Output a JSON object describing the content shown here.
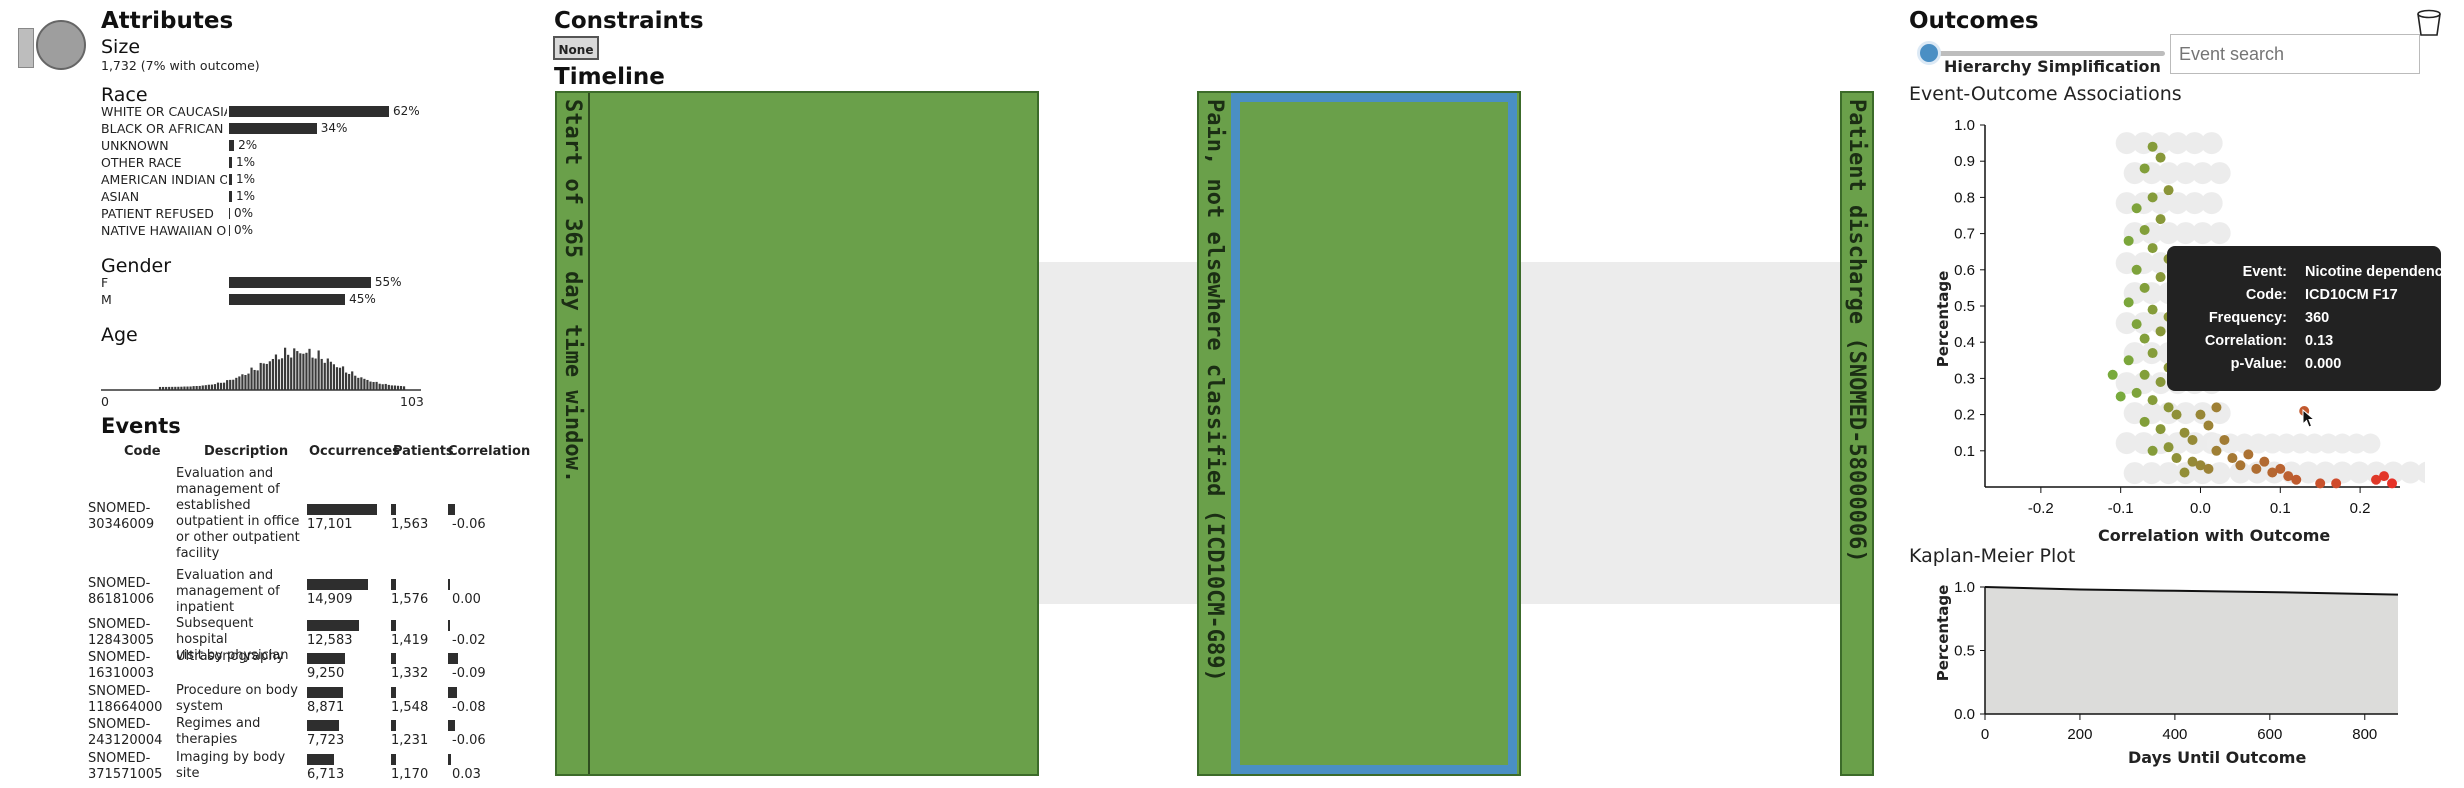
{
  "attributes": {
    "title": "Attributes",
    "size_label": "Size",
    "size_value": "1,732 (7% with outcome)",
    "race_label": "Race",
    "race": [
      {
        "label": "WHITE OR CAUCASIA",
        "pct": "62%",
        "value": 62
      },
      {
        "label": "BLACK OR AFRICAN A",
        "pct": "34%",
        "value": 34
      },
      {
        "label": "UNKNOWN",
        "pct": "2%",
        "value": 2
      },
      {
        "label": "OTHER RACE",
        "pct": "1%",
        "value": 1
      },
      {
        "label": "AMERICAN INDIAN OI",
        "pct": "1%",
        "value": 1
      },
      {
        "label": "ASIAN",
        "pct": "1%",
        "value": 1
      },
      {
        "label": "PATIENT REFUSED",
        "pct": "0%",
        "value": 0
      },
      {
        "label": "NATIVE HAWAIIAN OI",
        "pct": "0%",
        "value": 0
      }
    ],
    "gender_label": "Gender",
    "gender": [
      {
        "label": "F",
        "pct": "55%",
        "value": 55
      },
      {
        "label": "M",
        "pct": "45%",
        "value": 45
      }
    ],
    "age_label": "Age",
    "age_min": "0",
    "age_max": "103"
  },
  "events": {
    "title": "Events",
    "headers": {
      "code": "Code",
      "description": "Description",
      "occurrences": "Occurrences",
      "patients": "Patients",
      "correlation": "Correlation"
    },
    "rows": [
      {
        "code": "SNOMED-30346009",
        "code_lines": [
          "SNOMED-",
          "30346009"
        ],
        "description_lines": [
          "Evaluation and",
          "management of",
          "established",
          "outpatient in office",
          "or other outpatient",
          "facility"
        ],
        "occurrences": "17,101",
        "occ_value": 17101,
        "patients": "1,563",
        "correlation": "-0.06",
        "corr_value": -0.06
      },
      {
        "code": "SNOMED-86181006",
        "code_lines": [
          "SNOMED-",
          "86181006"
        ],
        "description_lines": [
          "Evaluation and",
          "management of",
          "inpatient"
        ],
        "occurrences": "14,909",
        "occ_value": 14909,
        "patients": "1,576",
        "correlation": "0.00",
        "corr_value": 0.0
      },
      {
        "code": "SNOMED-12843005",
        "code_lines": [
          "SNOMED-",
          "12843005"
        ],
        "description_lines": [
          "Subsequent hospital",
          "visit by physician"
        ],
        "occurrences": "12,583",
        "occ_value": 12583,
        "patients": "1,419",
        "correlation": "-0.02",
        "corr_value": -0.02
      },
      {
        "code": "SNOMED-16310003",
        "code_lines": [
          "SNOMED-",
          "16310003"
        ],
        "description_lines": [
          "Ultrasonography"
        ],
        "occurrences": "9,250",
        "occ_value": 9250,
        "patients": "1,332",
        "correlation": "-0.09",
        "corr_value": -0.09
      },
      {
        "code": "SNOMED-118664000",
        "code_lines": [
          "SNOMED-",
          "118664000"
        ],
        "description_lines": [
          "Procedure on body",
          "system"
        ],
        "occurrences": "8,871",
        "occ_value": 8871,
        "patients": "1,548",
        "correlation": "-0.08",
        "corr_value": -0.08
      },
      {
        "code": "SNOMED-243120004",
        "code_lines": [
          "SNOMED-",
          "243120004"
        ],
        "description_lines": [
          "Regimes and",
          "therapies"
        ],
        "occurrences": "7,723",
        "occ_value": 7723,
        "patients": "1,231",
        "correlation": "-0.06",
        "corr_value": -0.06
      },
      {
        "code": "SNOMED-371571005",
        "code_lines": [
          "SNOMED-",
          "371571005"
        ],
        "description_lines": [
          "Imaging by body site"
        ],
        "occurrences": "6,713",
        "occ_value": 6713,
        "patients": "1,170",
        "correlation": "0.03",
        "corr_value": 0.03
      }
    ]
  },
  "constraints": {
    "title": "Constraints",
    "button_label": "None"
  },
  "timeline": {
    "title": "Timeline",
    "nodes": [
      {
        "label": "Start of 365 day time window."
      },
      {
        "label": "Pain, not elsewhere classified (ICD10CM-G89)"
      },
      {
        "label": "Patient discharge (SNOMED-58000006)"
      }
    ]
  },
  "outcomes": {
    "title": "Outcomes",
    "slider_label": "Hierarchy Simplification",
    "slider_value": 0,
    "search_placeholder": "Event search",
    "trash_icon": "trash-icon"
  },
  "scatter": {
    "title": "Event-Outcome Associations",
    "ylabel": "Percentage",
    "xlabel": "Correlation with Outcome",
    "yticks": [
      "1.0",
      "0.9",
      "0.8",
      "0.7",
      "0.6",
      "0.5",
      "0.4",
      "0.3",
      "0.2",
      "0.1"
    ],
    "xticks": [
      "-0.2",
      "-0.1",
      "0.0",
      "0.1",
      "0.2"
    ],
    "tooltip": {
      "event_key": "Event:",
      "event": "Nicotine dependence",
      "code_key": "Code:",
      "code": "ICD10CM F17",
      "frequency_key": "Frequency:",
      "frequency": "360",
      "correlation_key": "Correlation:",
      "correlation": "0.13",
      "pvalue_key": "p-Value:",
      "pvalue": "0.000"
    }
  },
  "km": {
    "title": "Kaplan-Meier Plot",
    "ylabel": "Percentage",
    "xlabel": "Days Until Outcome",
    "yticks": [
      "1.0",
      "0.5",
      "0.0"
    ],
    "xticks": [
      "0",
      "200",
      "400",
      "600",
      "800"
    ]
  },
  "chart_data": [
    {
      "type": "scatter",
      "title": "Event-Outcome Associations",
      "xlabel": "Correlation with Outcome",
      "ylabel": "Percentage",
      "xlim": [
        -0.27,
        0.25
      ],
      "ylim": [
        0,
        1.0
      ],
      "points": [
        [
          -0.06,
          0.94
        ],
        [
          -0.05,
          0.91
        ],
        [
          -0.07,
          0.88
        ],
        [
          -0.04,
          0.82
        ],
        [
          -0.06,
          0.8
        ],
        [
          -0.08,
          0.77
        ],
        [
          -0.05,
          0.74
        ],
        [
          -0.07,
          0.71
        ],
        [
          -0.09,
          0.68
        ],
        [
          -0.06,
          0.66
        ],
        [
          -0.04,
          0.63
        ],
        [
          -0.08,
          0.6
        ],
        [
          -0.05,
          0.58
        ],
        [
          -0.07,
          0.55
        ],
        [
          -0.03,
          0.53
        ],
        [
          -0.09,
          0.51
        ],
        [
          -0.06,
          0.49
        ],
        [
          -0.04,
          0.47
        ],
        [
          -0.08,
          0.45
        ],
        [
          -0.05,
          0.43
        ],
        [
          -0.07,
          0.41
        ],
        [
          -0.03,
          0.39
        ],
        [
          -0.06,
          0.37
        ],
        [
          -0.09,
          0.35
        ],
        [
          -0.04,
          0.33
        ],
        [
          -0.07,
          0.31
        ],
        [
          -0.05,
          0.29
        ],
        [
          -0.02,
          0.28
        ],
        [
          -0.08,
          0.26
        ],
        [
          -0.06,
          0.24
        ],
        [
          -0.04,
          0.22
        ],
        [
          -0.03,
          0.2
        ],
        [
          -0.07,
          0.18
        ],
        [
          -0.05,
          0.16
        ],
        [
          -0.02,
          0.15
        ],
        [
          -0.01,
          0.13
        ],
        [
          -0.04,
          0.11
        ],
        [
          -0.06,
          0.1
        ],
        [
          -0.03,
          0.08
        ],
        [
          -0.01,
          0.07
        ],
        [
          0.0,
          0.06
        ],
        [
          0.01,
          0.05
        ],
        [
          -0.02,
          0.04
        ],
        [
          0.02,
          0.1
        ],
        [
          0.03,
          0.13
        ],
        [
          0.01,
          0.17
        ],
        [
          0.0,
          0.2
        ],
        [
          0.02,
          0.22
        ],
        [
          0.04,
          0.08
        ],
        [
          0.05,
          0.06
        ],
        [
          0.06,
          0.09
        ],
        [
          0.07,
          0.05
        ],
        [
          0.08,
          0.07
        ],
        [
          0.09,
          0.04
        ],
        [
          0.1,
          0.05
        ],
        [
          0.11,
          0.03
        ],
        [
          0.12,
          0.02
        ],
        [
          0.13,
          0.21
        ],
        [
          0.03,
          0.6
        ],
        [
          0.02,
          0.5
        ],
        [
          0.01,
          0.45
        ],
        [
          0.04,
          0.3
        ],
        [
          0.06,
          0.35
        ],
        [
          0.08,
          0.44
        ],
        [
          0.05,
          0.42
        ],
        [
          0.17,
          0.01
        ],
        [
          0.22,
          0.02
        ],
        [
          0.23,
          0.03
        ],
        [
          0.24,
          0.01
        ],
        [
          0.15,
          0.01
        ],
        [
          -0.1,
          0.25
        ],
        [
          -0.11,
          0.31
        ]
      ]
    },
    {
      "type": "area",
      "title": "Kaplan-Meier Plot",
      "xlabel": "Days Until Outcome",
      "ylabel": "Percentage",
      "xlim": [
        0,
        870
      ],
      "ylim": [
        0,
        1.0
      ],
      "x": [
        0,
        200,
        400,
        600,
        870
      ],
      "y": [
        1.0,
        0.98,
        0.97,
        0.96,
        0.94
      ]
    }
  ]
}
